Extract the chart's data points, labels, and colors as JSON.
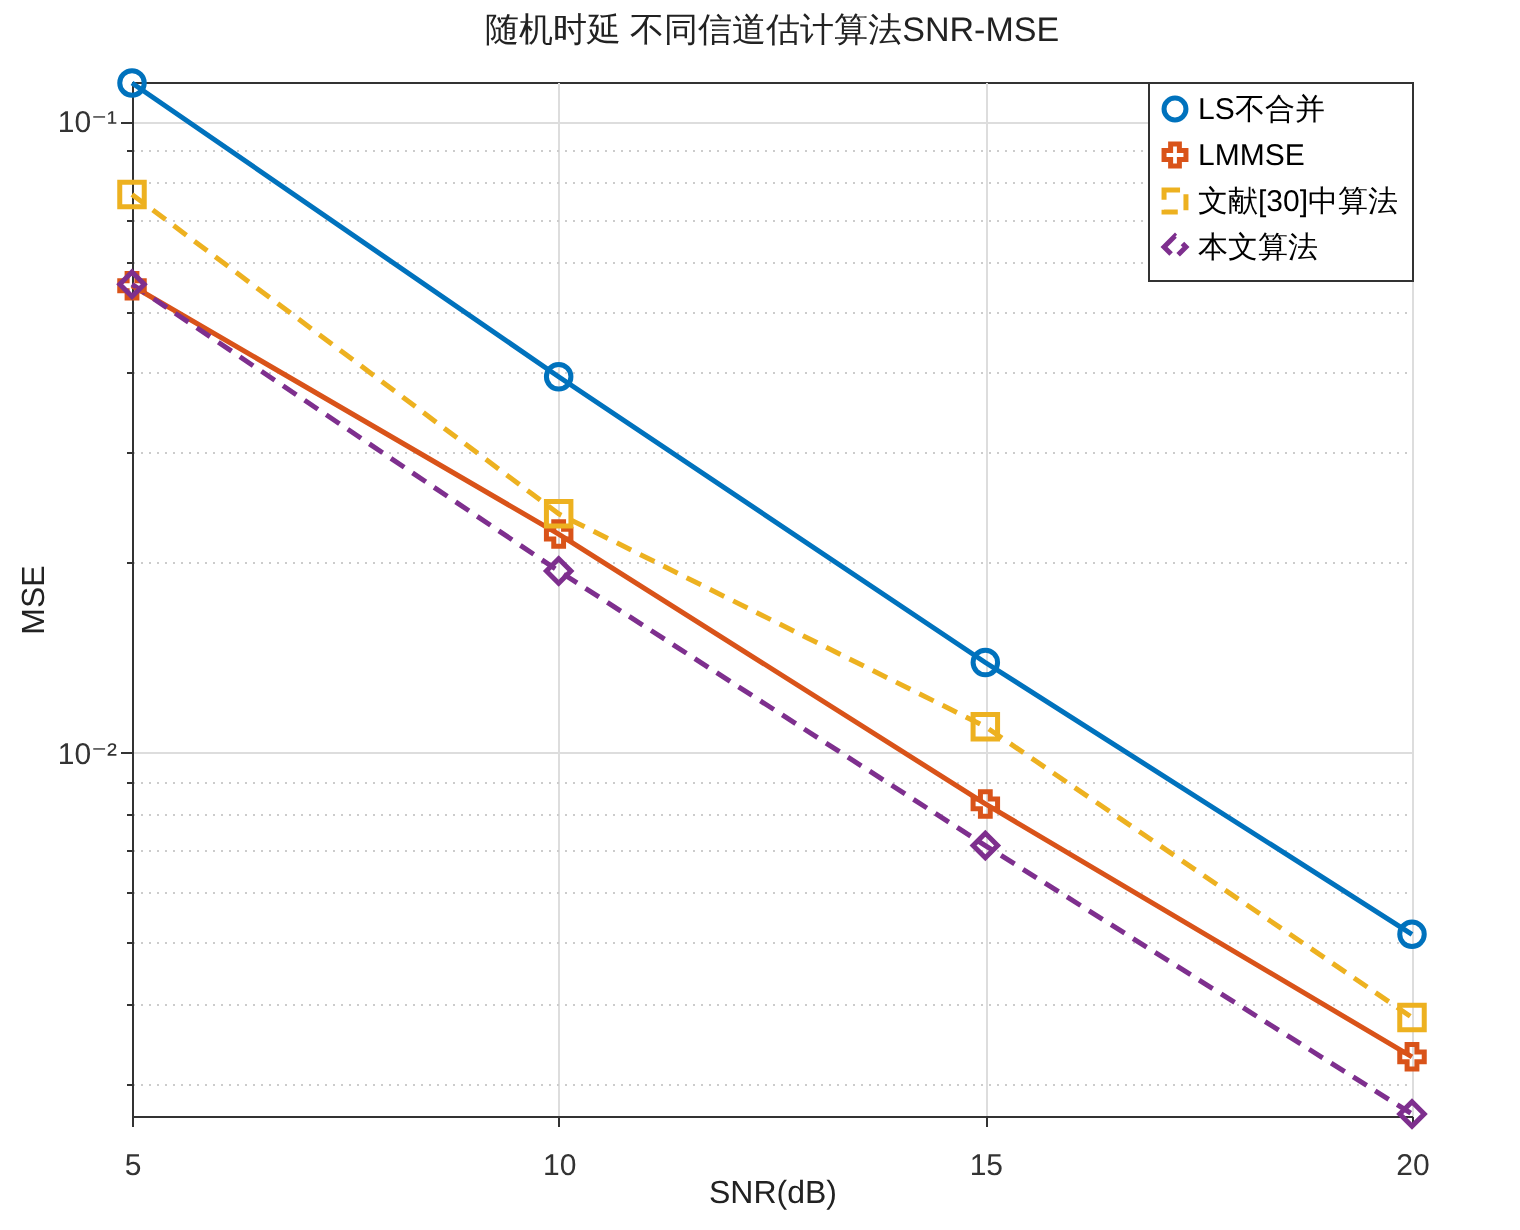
{
  "chart_data": {
    "type": "line",
    "title": "随机时延 不同信道估计算法SNR-MSE",
    "xlabel": "SNR(dB)",
    "ylabel": "MSE",
    "x": [
      5,
      10,
      15,
      20
    ],
    "series": [
      {
        "name": "LS不合并",
        "color": "#0072bd",
        "marker": "circle",
        "line_style": "solid",
        "values": [
          0.115,
          0.0394,
          0.0139,
          0.00516
        ]
      },
      {
        "name": "LMMSE",
        "color": "#d95319",
        "marker": "cross",
        "line_style": "solid",
        "values": [
          0.0549,
          0.0222,
          0.0083,
          0.0033
        ]
      },
      {
        "name": "文献[30]中算法",
        "color": "#edb120",
        "marker": "square",
        "line_style": "dashed",
        "values": [
          0.0766,
          0.0239,
          0.011,
          0.00381
        ]
      },
      {
        "name": "本文算法",
        "color": "#7e2f8e",
        "marker": "diamond",
        "line_style": "dashed",
        "values": [
          0.0552,
          0.0194,
          0.00713,
          0.00268
        ]
      }
    ],
    "log": "y",
    "xlim": [
      5,
      20
    ],
    "ylim": [
      0.00266,
      0.1154
    ],
    "xticks": [
      5,
      10,
      15,
      20
    ],
    "yticks": [
      {
        "value": 0.003,
        "label": null
      },
      {
        "value": 0.004,
        "label": null
      },
      {
        "value": 0.005,
        "label": null
      },
      {
        "value": 0.006,
        "label": null
      },
      {
        "value": 0.007,
        "label": null
      },
      {
        "value": 0.008,
        "label": null
      },
      {
        "value": 0.009,
        "label": null
      },
      {
        "value": 0.01,
        "label": "10⁻²"
      },
      {
        "value": 0.02,
        "label": null
      },
      {
        "value": 0.03,
        "label": null
      },
      {
        "value": 0.04,
        "label": null
      },
      {
        "value": 0.05,
        "label": null
      },
      {
        "value": 0.06,
        "label": null
      },
      {
        "value": 0.07,
        "label": null
      },
      {
        "value": 0.08,
        "label": null
      },
      {
        "value": 0.09,
        "label": null
      },
      {
        "value": 0.1,
        "label": "10⁻¹"
      }
    ],
    "grid": true,
    "legend": "top right"
  }
}
